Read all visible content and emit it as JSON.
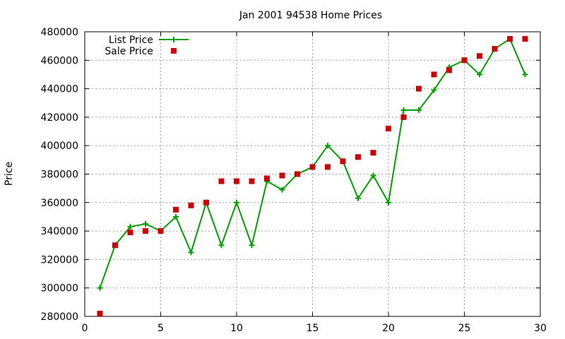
{
  "chart_data": {
    "type": "line",
    "title": "Jan 2001 94538 Home Prices",
    "xlabel": "",
    "ylabel": "Price",
    "xlim": [
      0,
      30
    ],
    "ylim": [
      280000,
      480000
    ],
    "xticks": [
      0,
      5,
      10,
      15,
      20,
      25,
      30
    ],
    "yticks": [
      280000,
      300000,
      320000,
      340000,
      360000,
      380000,
      400000,
      420000,
      440000,
      460000,
      480000
    ],
    "grid": true,
    "legend_position": "top-left",
    "series": [
      {
        "name": "List Price",
        "style": "line+cross",
        "color": "#00a000",
        "x": [
          1,
          2,
          3,
          4,
          5,
          6,
          7,
          8,
          9,
          10,
          11,
          12,
          13,
          14,
          15,
          16,
          17,
          18,
          19,
          20,
          21,
          22,
          23,
          24,
          25,
          26,
          27,
          28,
          29
        ],
        "y": [
          300000,
          330000,
          343000,
          345000,
          340000,
          350000,
          325000,
          360000,
          330000,
          360000,
          330000,
          375000,
          369000,
          380000,
          385000,
          400000,
          389000,
          363000,
          379000,
          360000,
          425000,
          425000,
          439000,
          455000,
          460000,
          450000,
          468000,
          475000,
          450000
        ]
      },
      {
        "name": "Sale Price",
        "style": "square",
        "color": "#cc0000",
        "x": [
          1,
          2,
          3,
          4,
          5,
          6,
          7,
          8,
          9,
          10,
          11,
          12,
          13,
          14,
          15,
          16,
          17,
          18,
          19,
          20,
          21,
          22,
          23,
          24,
          25,
          26,
          27,
          28,
          29
        ],
        "y": [
          282000,
          330000,
          339000,
          340000,
          340000,
          355000,
          358000,
          360000,
          375000,
          375000,
          375000,
          377000,
          379000,
          380000,
          385000,
          385000,
          389000,
          392000,
          395000,
          412000,
          420000,
          440000,
          450000,
          453000,
          460000,
          463000,
          468000,
          475000,
          475000
        ]
      }
    ]
  }
}
